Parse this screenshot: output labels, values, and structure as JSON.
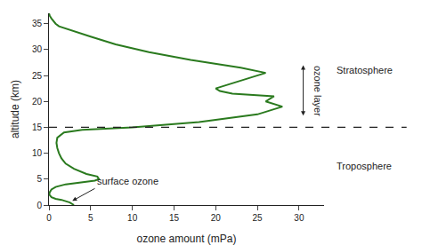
{
  "chart_data": {
    "type": "line",
    "x": [
      3.0,
      2.5,
      1.5,
      0.8,
      0.3,
      0.1,
      0.05,
      0.05,
      0.1,
      0.3,
      0.8,
      2.0,
      3.5,
      4.8,
      5.5,
      6.0,
      5.8,
      4.5,
      3.0,
      2.0,
      1.5,
      1.2,
      1.0,
      0.9,
      1.0,
      1.8,
      4.0,
      10.0,
      18.0,
      25.0,
      28.0,
      26.0,
      27.0,
      22.0,
      20.5,
      20.0,
      21.0,
      24.0,
      26.0,
      23.0,
      17.0,
      12.0,
      8.0,
      5.0,
      3.0,
      2.0,
      1.2,
      0.8,
      0.5,
      0.3,
      0.1,
      0.0
    ],
    "values": [
      0,
      0.5,
      1.0,
      1.2,
      1.5,
      1.8,
      2.0,
      2.2,
      2.5,
      3.0,
      3.5,
      4.0,
      4.3,
      4.5,
      4.7,
      5.0,
      5.5,
      6.0,
      7.0,
      8.0,
      9.0,
      10.0,
      11.0,
      12.0,
      13.0,
      14.0,
      14.5,
      15.0,
      16.0,
      17.5,
      19.0,
      20.0,
      21.0,
      21.5,
      22.0,
      22.5,
      23.0,
      24.5,
      25.5,
      26.5,
      28.0,
      29.5,
      31.0,
      32.5,
      33.5,
      34.0,
      34.5,
      35.0,
      35.5,
      36.0,
      36.5,
      37.0
    ],
    "color": "#2a7a1e",
    "xlabel": "ozone amount (mPa)",
    "ylabel": "altitude (km)",
    "xlim": [
      0,
      33
    ],
    "ylim": [
      0,
      37
    ],
    "xticks": [
      0,
      5,
      10,
      15,
      20,
      25,
      30
    ],
    "yticks": [
      0,
      5,
      10,
      15,
      20,
      25,
      30,
      35
    ],
    "grid": false,
    "hline": {
      "y": 15,
      "color": "#222222",
      "line_style": "dashed"
    },
    "region_labels": {
      "above": "Stratosphere",
      "below": "Troposphere"
    },
    "annotations": [
      {
        "text": "ozone layer",
        "x": 30.5,
        "y_from": 17,
        "y_to": 27,
        "arrow": "double"
      },
      {
        "text": "surface ozone",
        "x": 5.5,
        "y": 3.2,
        "arrow_x": 2.8,
        "arrow_y": 0.8
      }
    ]
  }
}
